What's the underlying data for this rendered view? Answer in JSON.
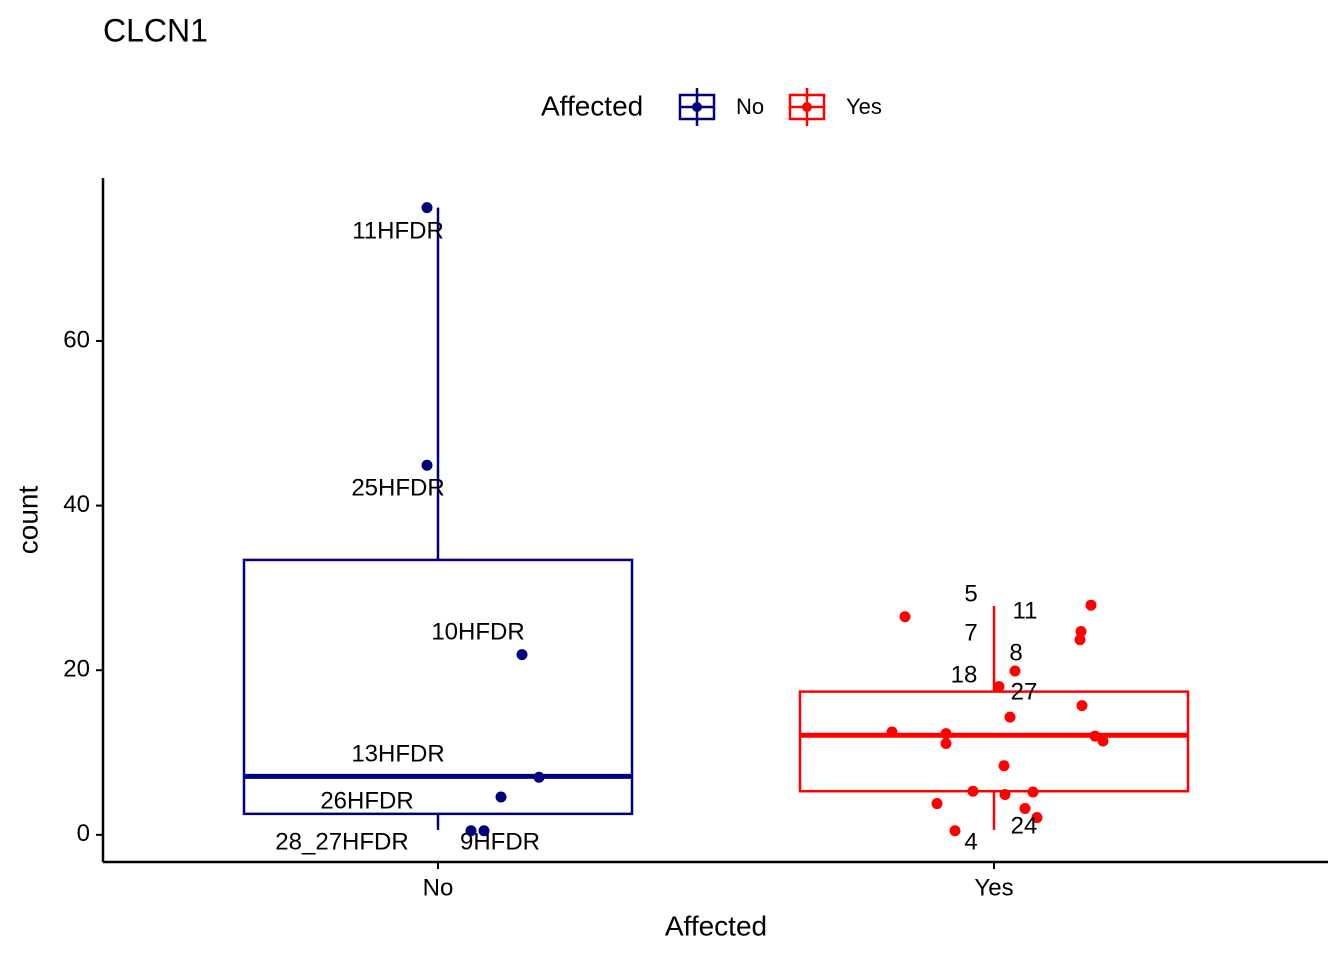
{
  "chart_data": {
    "type": "boxplot",
    "title": "CLCN1",
    "x_label": "Affected",
    "y_label": "count",
    "legend_title": "Affected",
    "categories": [
      "No",
      "Yes"
    ],
    "ylim": [
      -3.3,
      79.8
    ],
    "yticks": [
      0,
      20,
      40,
      60
    ],
    "series": [
      {
        "name": "No",
        "color": "#00007f",
        "box": {
          "min": 0.6,
          "q1": 2.55,
          "median": 7.1,
          "q3": 33.4,
          "max": 76.2
        },
        "points": [
          76.2,
          44.9,
          21.9,
          7.0,
          4.6,
          0.5,
          0.5
        ],
        "point_labels": [
          "11HFDR",
          "25HFDR",
          "10HFDR",
          "13HFDR",
          "26HFDR",
          "28_27HFDR",
          "9HFDR"
        ]
      },
      {
        "name": "Yes",
        "color": "#ff0000",
        "box": {
          "min": 0.6,
          "q1": 5.3,
          "median": 12.1,
          "q3": 17.4,
          "max": 27.8
        },
        "points": [
          27.9,
          26.5,
          24.7,
          23.7,
          19.9,
          18.0,
          14.3,
          15.7,
          12.5,
          12.3,
          11.1,
          12.0,
          11.4,
          8.4,
          5.3,
          4.9,
          5.2,
          3.8,
          3.2,
          2.1,
          0.5
        ],
        "point_labels": [
          "11",
          "5",
          "7",
          "8",
          "18",
          "27",
          null,
          null,
          null,
          null,
          null,
          null,
          null,
          null,
          null,
          null,
          null,
          null,
          null,
          "24",
          "4"
        ]
      }
    ]
  }
}
